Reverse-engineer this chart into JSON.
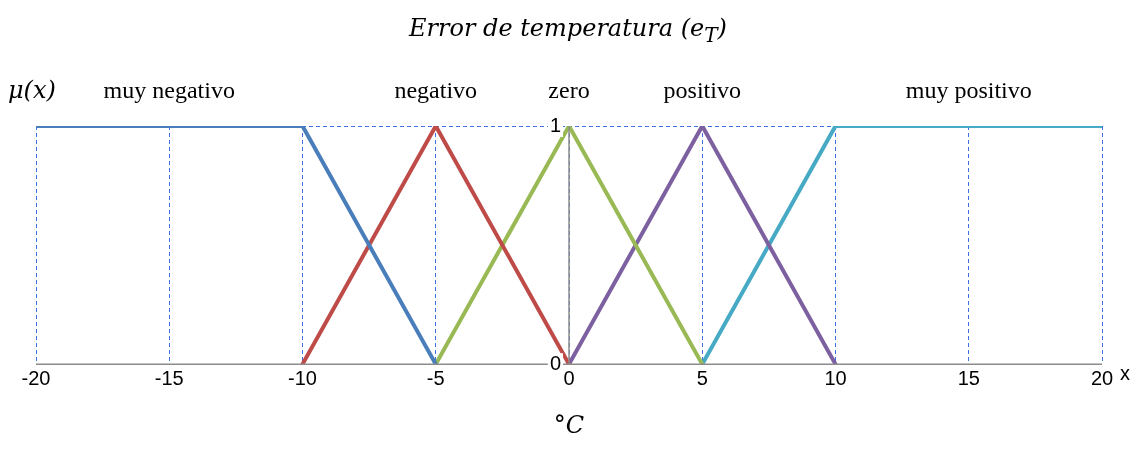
{
  "chart_data": {
    "type": "line",
    "title": "Error de temperatura (e$_{T}$)",
    "ylabel": "μ(x)",
    "xlabel": "°C",
    "annotations": [
      "x"
    ],
    "xlim": [
      -20,
      20
    ],
    "xticks": [
      -20,
      -15,
      -10,
      -5,
      0,
      5,
      10,
      15,
      20
    ],
    "ylim": [
      0,
      1
    ],
    "yticks": [
      0,
      1
    ],
    "grid": true,
    "legend": false,
    "marker": "none",
    "line_style": "solid",
    "series": [
      {
        "name": "muy negativo",
        "color": "#4a7ebb",
        "x": [
          -20,
          -10,
          -5
        ],
        "values": [
          1,
          1,
          0
        ]
      },
      {
        "name": "negativo",
        "color": "#be4b48",
        "x": [
          -10,
          -5,
          0
        ],
        "values": [
          0,
          1,
          0
        ]
      },
      {
        "name": "zero",
        "color": "#98b954",
        "x": [
          -5,
          0,
          5
        ],
        "values": [
          0,
          1,
          0
        ]
      },
      {
        "name": "positivo",
        "color": "#7d60a0",
        "x": [
          0,
          5,
          10
        ],
        "values": [
          0,
          1,
          0
        ]
      },
      {
        "name": "muy positivo",
        "color": "#46aac5",
        "x": [
          5,
          10,
          20
        ],
        "values": [
          0,
          1,
          1
        ]
      }
    ]
  }
}
